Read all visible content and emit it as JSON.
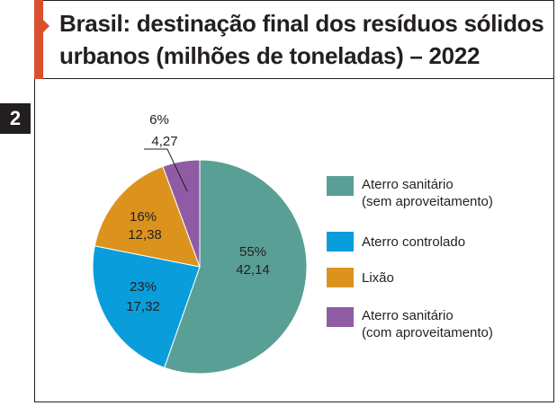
{
  "header": {
    "title_line1": "Brasil: destinação final dos resíduos sólidos",
    "title_line2": "urbanos (milhões de toneladas) – 2022",
    "badge": "2"
  },
  "colors": {
    "accent": "#d9512c",
    "aterro_sanitario_sem": "#5a9f96",
    "aterro_controlado": "#0a9ddb",
    "lixao": "#dc931e",
    "aterro_sanitario_com": "#8f5ba4"
  },
  "chart_data": {
    "type": "pie",
    "title": "Brasil: destinação final dos resíduos sólidos urbanos (milhões de toneladas) – 2022",
    "unit": "milhões de toneladas",
    "slices": [
      {
        "legend_lines": [
          "Aterro sanitário",
          "(sem aproveitamento)"
        ],
        "percent_label": "55%",
        "value_label": "42,14",
        "value": 42.14,
        "color": "#5a9f96"
      },
      {
        "legend_lines": [
          "Aterro controlado"
        ],
        "percent_label": "23%",
        "value_label": "17,32",
        "value": 17.32,
        "color": "#0a9ddb"
      },
      {
        "legend_lines": [
          "Lixão"
        ],
        "percent_label": "16%",
        "value_label": "12,38",
        "value": 12.38,
        "color": "#dc931e"
      },
      {
        "legend_lines": [
          "Aterro sanitário",
          "(com aproveitamento)"
        ],
        "percent_label": "6%",
        "value_label": "4,27",
        "value": 4.27,
        "color": "#8f5ba4"
      }
    ],
    "legend_position": "right"
  }
}
